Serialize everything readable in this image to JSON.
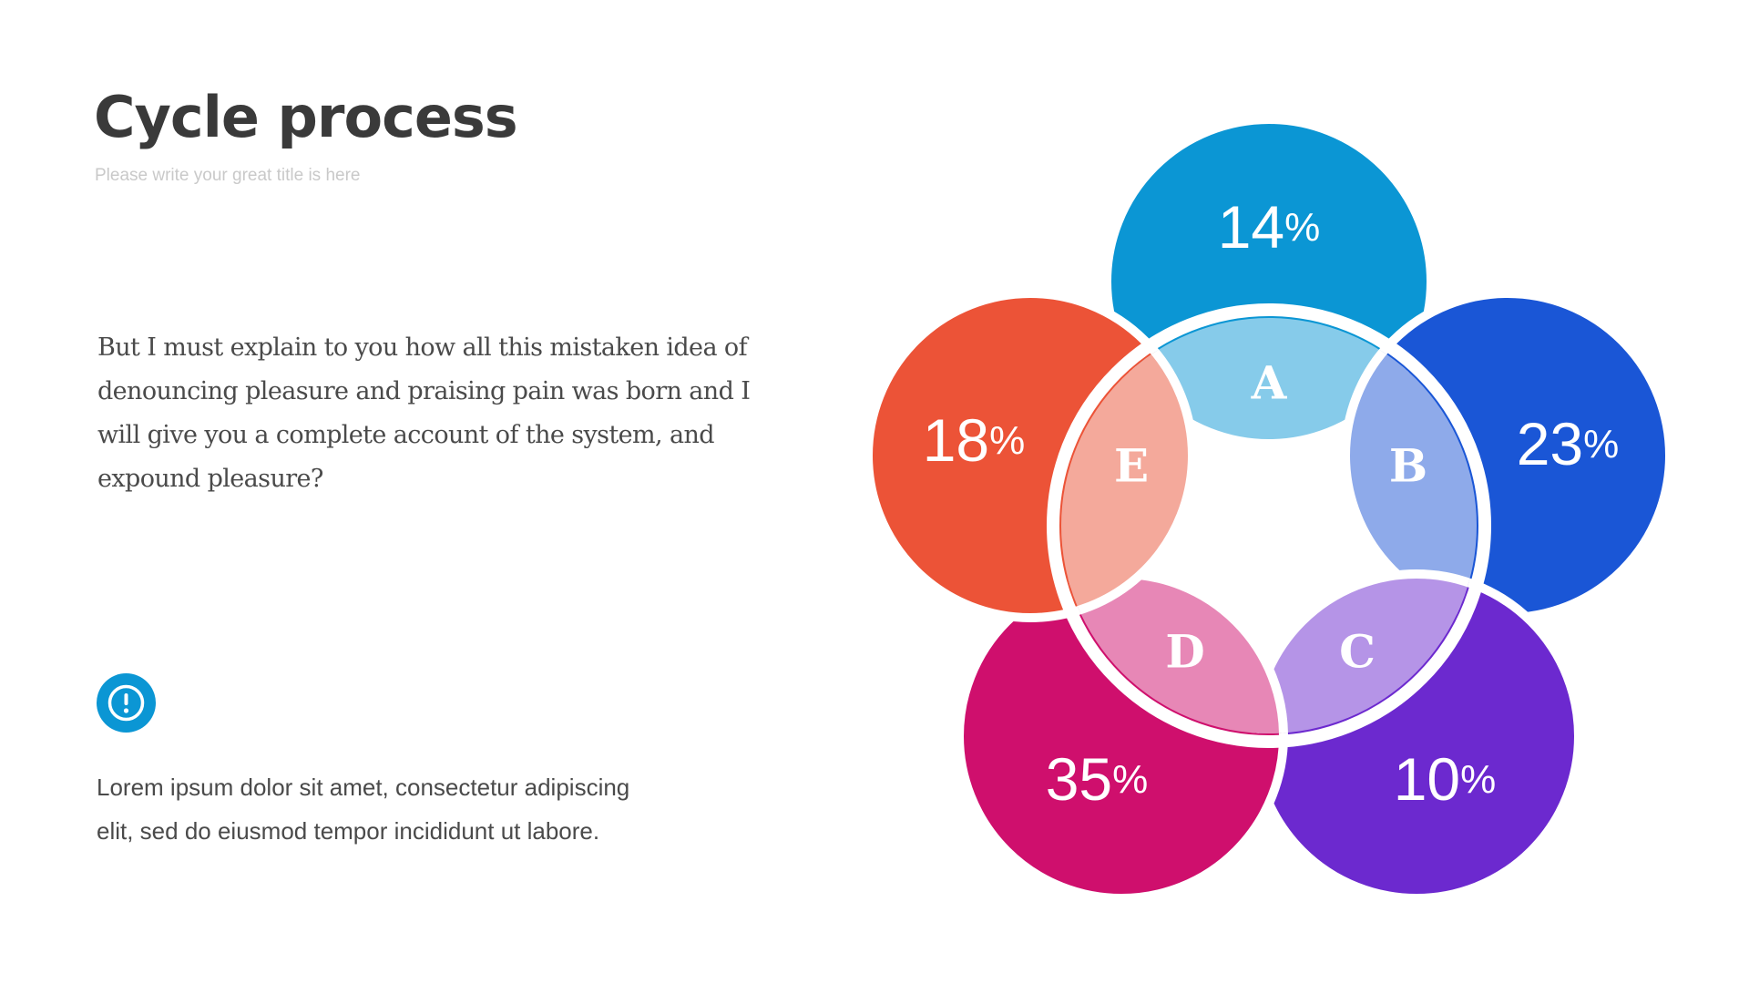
{
  "slide": {
    "title": "Cycle process",
    "subtitle": "Please write your great title is here",
    "intro": "But I must explain to you how all this mistaken idea of denouncing pleasure and praising pain was born and I will give you a complete account of the system, and expound pleasure?",
    "body": "Lorem ipsum dolor sit amet, consectetur adipiscing elit, sed do eiusmod tempor incididunt ut labore."
  },
  "info_icon": {
    "name": "info-exclamation-icon",
    "color": "#0b96d4"
  },
  "diagram": {
    "unit": "%",
    "segments": [
      {
        "id": "A",
        "value": "14",
        "outer_color": "#0b96d4",
        "inner_color": "#86cbea"
      },
      {
        "id": "B",
        "value": "23",
        "outer_color": "#1a56d6",
        "inner_color": "#8eaaea"
      },
      {
        "id": "C",
        "value": "10",
        "outer_color": "#6c29cf",
        "inner_color": "#b594e7"
      },
      {
        "id": "D",
        "value": "35",
        "outer_color": "#cf0f6d",
        "inner_color": "#e787b6"
      },
      {
        "id": "E",
        "value": "18",
        "outer_color": "#ec5337",
        "inner_color": "#f4a99b"
      }
    ]
  }
}
